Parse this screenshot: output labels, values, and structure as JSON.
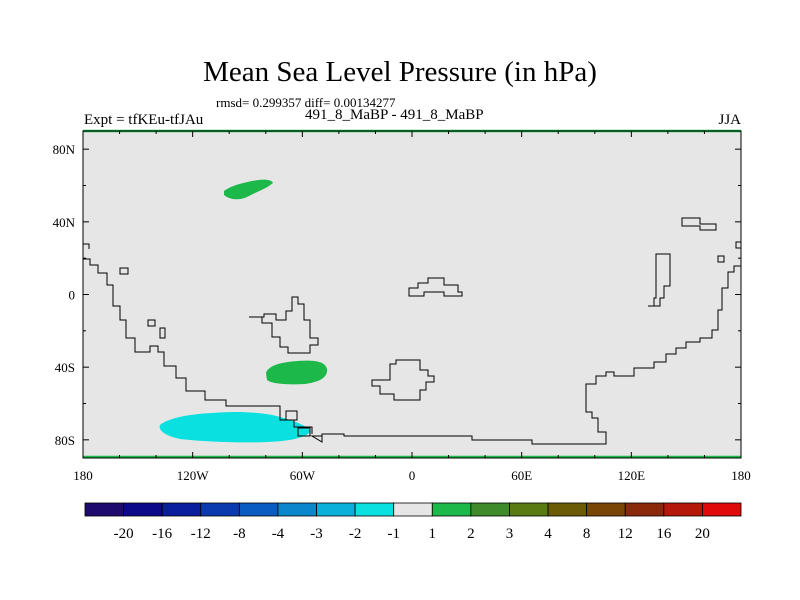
{
  "title": "Mean Sea Level Pressure (in hPa)",
  "stats": "rmsd= 0.299357 diff= 0.00134277",
  "left_label": "Expt = tfKEu-tfJAu",
  "center_label": "491_8_MaBP - 491_8_MaBP",
  "right_label": "JJA",
  "map": {
    "x_ticks": [
      "180",
      "120W",
      "60W",
      "0",
      "60E",
      "120E",
      "180"
    ],
    "y_ticks": [
      "80N",
      "40N",
      "0",
      "40S",
      "80S"
    ],
    "background_color": "#e6e6e6",
    "coastline_color": "#000000"
  },
  "colorbar": {
    "labels": [
      "-20",
      "-16",
      "-12",
      "-8",
      "-4",
      "-3",
      "-2",
      "-1",
      "1",
      "2",
      "3",
      "4",
      "8",
      "12",
      "16",
      "20"
    ],
    "colors": [
      "#1f0a6e",
      "#0d0a8a",
      "#0a1f9e",
      "#0a3aad",
      "#0a5cc2",
      "#0a86cc",
      "#0ab0d9",
      "#0ae0e0",
      "#e6e6e6",
      "#1db84a",
      "#3f8a2a",
      "#5a7a12",
      "#6b5a06",
      "#7a4606",
      "#8a2a0a",
      "#b3180a",
      "#e00a0a"
    ]
  }
}
